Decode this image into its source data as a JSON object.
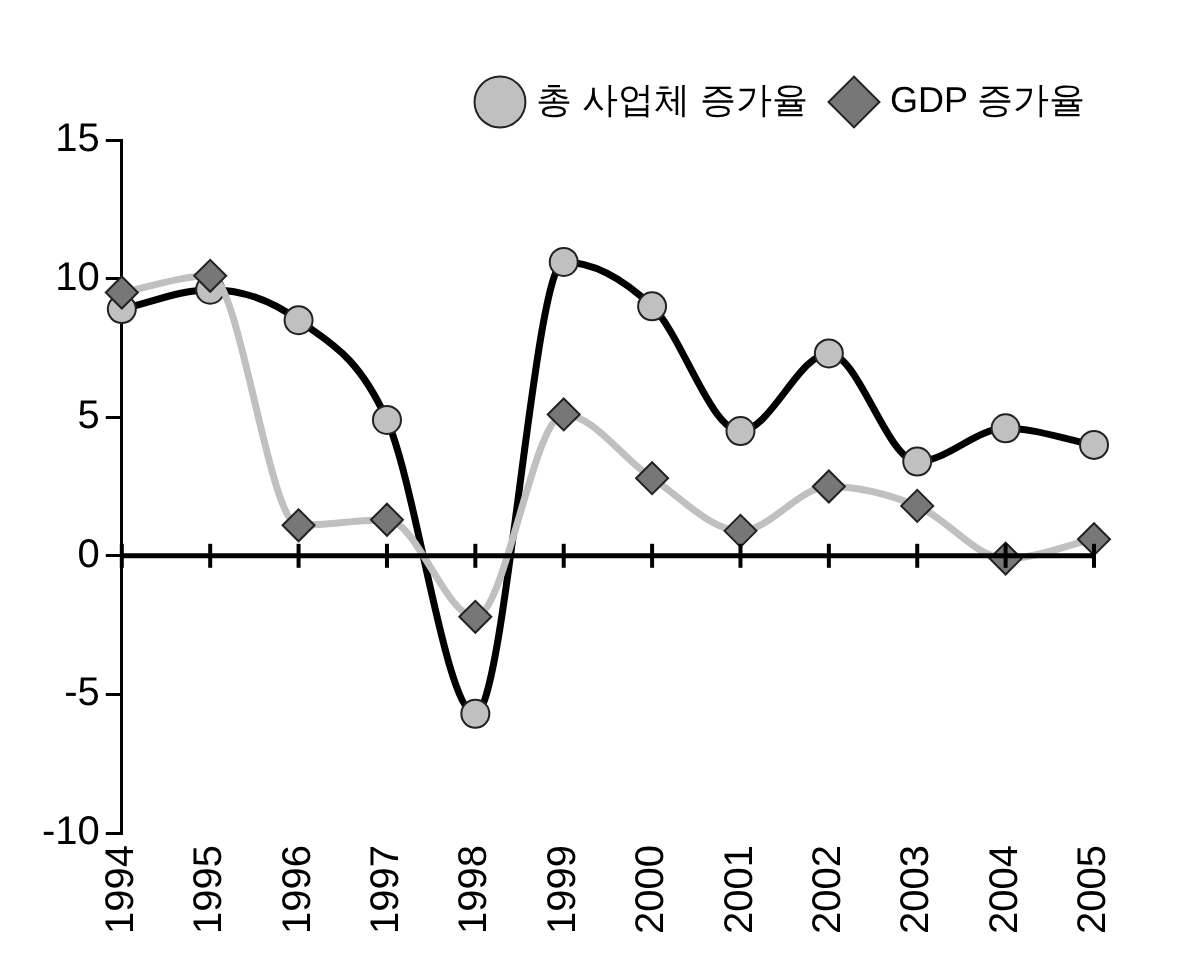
{
  "chart_data": {
    "type": "line",
    "categories": [
      "1994",
      "1995",
      "1996",
      "1997",
      "1998",
      "1999",
      "2000",
      "2001",
      "2002",
      "2003",
      "2004",
      "2005"
    ],
    "series": [
      {
        "name": "총 사업체 증가율",
        "color": "#000000",
        "marker": "circle",
        "values": [
          8.9,
          9.6,
          8.5,
          4.9,
          -5.7,
          10.6,
          9.0,
          4.5,
          7.3,
          3.4,
          4.6,
          4.0
        ]
      },
      {
        "name": "GDP 증가율",
        "color": "#c0c0c0",
        "marker": "diamond",
        "values": [
          9.5,
          10.1,
          1.1,
          1.3,
          -2.2,
          5.1,
          2.8,
          0.9,
          2.5,
          1.8,
          -0.1,
          0.6
        ]
      }
    ],
    "ylim": [
      -10,
      15
    ],
    "yticks": [
      -10,
      -5,
      0,
      5,
      10,
      15
    ],
    "legend": "top right"
  }
}
